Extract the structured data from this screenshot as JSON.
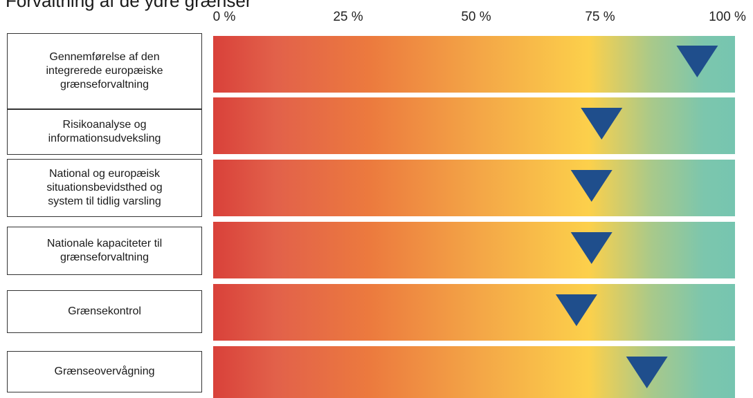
{
  "title": "Forvaltning af de ydre grænser",
  "chart_data": {
    "type": "bar",
    "xlabel": "",
    "ylabel": "",
    "ticks": [
      "0 %",
      "25 %",
      "50 %",
      "75 %",
      "100 %"
    ],
    "xlim": [
      0,
      100
    ],
    "categories": [
      "Gennemførelse af den\nintegrerede europæiske\ngrænseforvaltning",
      "Risikoanalyse og\ninformationsudveksling",
      "National og europæisk\nsituationsbevidsthed og\nsystem til tidlig varsling",
      "Nationale kapaciteter til\ngrænseforvaltning",
      "Grænsekontrol",
      "Grænseovervågning"
    ],
    "values": [
      94,
      75,
      73,
      73,
      70,
      84
    ],
    "gradient_colors": [
      "#d9413a",
      "#ec7a3e",
      "#fcd04b",
      "#76c5b0"
    ],
    "marker_color": "#1f4e8c"
  }
}
